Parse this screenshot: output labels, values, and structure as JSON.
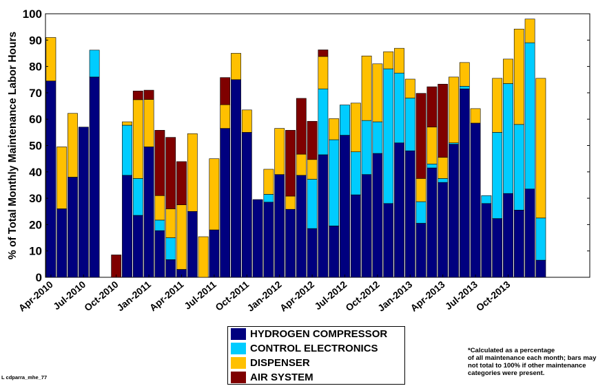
{
  "chart_data": {
    "type": "bar",
    "stacked": true,
    "ylabel": "% of Total Monthly Maintenance Labor Hours",
    "xlabel": "",
    "ylim": [
      0,
      100
    ],
    "yticks": [
      0,
      10,
      20,
      30,
      40,
      50,
      60,
      70,
      80,
      90,
      100
    ],
    "xtick_labels": [
      "Apr-2010",
      "Jul-2010",
      "Oct-2010",
      "Jan-2011",
      "Apr-2011",
      "Jul-2011",
      "Oct-2011",
      "Jan-2012",
      "Apr-2012",
      "Jul-2012",
      "Oct-2012",
      "Jan-2013",
      "Apr-2013",
      "Jul-2013",
      "Oct-2013"
    ],
    "xtick_every": 3,
    "months_shown": 50,
    "grid": false,
    "legend_position": "bottom-center",
    "series": [
      {
        "name": "HYDROGEN COMPRESSOR",
        "color": "#00007f",
        "values": [
          74.5,
          26,
          38,
          57,
          76,
          0,
          0,
          38.7,
          23.5,
          49.5,
          17.7,
          6.7,
          3,
          25,
          0,
          18,
          56.5,
          75,
          55,
          29.5,
          28.5,
          39,
          25.8,
          38.7,
          18.5,
          46.5,
          19.5,
          53.9,
          31.3,
          39,
          47,
          28,
          51,
          48,
          20.5,
          41.5,
          36,
          50.5,
          71.5,
          58.5,
          28,
          22.3,
          31.8,
          25.5,
          33.5,
          6.5,
          0,
          0,
          0,
          0
        ]
      },
      {
        "name": "CONTROL ELECTRONICS",
        "color": "#00ccff",
        "values": [
          0,
          0,
          0,
          0,
          10.2,
          0,
          0,
          19,
          14,
          0,
          4,
          8.3,
          0,
          0,
          0,
          0,
          0,
          0,
          0,
          0,
          3,
          0,
          0,
          0,
          18.7,
          25,
          32.7,
          11.5,
          16.3,
          20.5,
          12,
          51.1,
          26.5,
          20,
          8.2,
          1.5,
          1.5,
          0.5,
          1,
          0,
          3,
          32.7,
          41.7,
          32.5,
          55.5,
          16,
          0,
          0,
          0,
          0
        ]
      },
      {
        "name": "DISPENSER",
        "color": "#ffc000",
        "values": [
          16.5,
          23.5,
          24.2,
          0,
          0,
          0,
          0,
          1.3,
          29.9,
          18,
          9.3,
          11,
          24.5,
          29.5,
          15.4,
          27,
          9,
          10,
          8.5,
          0,
          9.5,
          17.5,
          5,
          8,
          7.5,
          12.3,
          8,
          0,
          18.5,
          24.5,
          22,
          6.5,
          9.4,
          7.2,
          8.8,
          14,
          8,
          25,
          9,
          5.5,
          0,
          20.5,
          9.3,
          36.2,
          9,
          53,
          0,
          0,
          0,
          0
        ]
      },
      {
        "name": "AIR SYSTEM",
        "color": "#7f0000",
        "values": [
          0,
          0,
          0,
          0,
          0,
          0,
          8.5,
          0,
          3.3,
          3.5,
          24.8,
          27.1,
          16.4,
          0,
          0,
          0,
          10.3,
          0,
          0,
          0,
          0,
          0,
          25,
          21.2,
          14.5,
          2.5,
          0,
          0,
          0,
          0,
          0,
          0,
          0,
          0,
          32.3,
          15.3,
          27.8,
          0,
          0,
          0,
          0,
          0,
          0,
          0,
          0,
          0,
          0,
          0,
          0,
          0
        ]
      }
    ]
  },
  "footnote": "*Calculated as a percentage\nof all maintenance each month; bars may\nnot total to 100% if other maintenance\ncategories were present.",
  "id_tag": "L cdparra_mhe_77"
}
